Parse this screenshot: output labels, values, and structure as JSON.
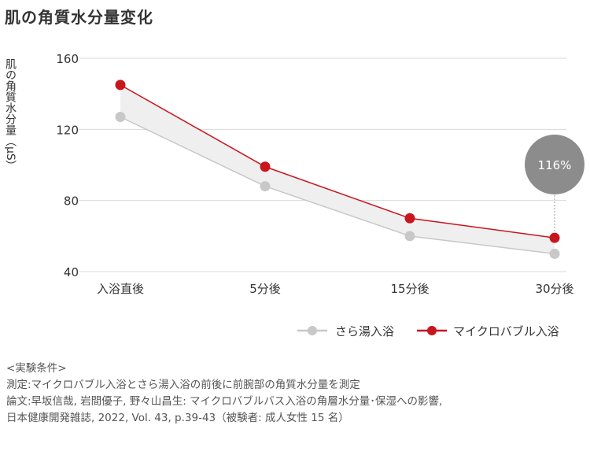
{
  "title": "肌の角質水分量変化",
  "chart_data": {
    "type": "line",
    "ylabel": "肌の角質水分量（μS）",
    "categories": [
      "入浴直後",
      "5分後",
      "15分後",
      "30分後"
    ],
    "yticks": [
      "160",
      "120",
      "80",
      "40"
    ],
    "ylim": [
      40,
      160
    ],
    "series": [
      {
        "name": "さら湯入浴",
        "color": "#c8c8c8",
        "values": [
          127,
          88,
          60,
          50
        ]
      },
      {
        "name": "マイクロバブル入浴",
        "color": "#c8161d",
        "values": [
          145,
          99,
          70,
          59
        ]
      }
    ],
    "annotation": {
      "text": "116%",
      "category_index": 3,
      "color": "#8c8c8c"
    },
    "band_color": "#efefef",
    "grid": true,
    "legend": "bottom-right"
  },
  "notes": [
    "<実験条件>",
    "測定:マイクロバブル入浴とさら湯入浴の前後に前腕部の角質水分量を測定",
    "論文:早坂信哉, 岩間優子, 野々山昌生: マイクロバブルバス入浴の角層水分量･保湿への影響,",
    "日本健康開発雑誌, 2022, Vol. 43, p.39-43（被験者: 成人女性 15 名）"
  ]
}
